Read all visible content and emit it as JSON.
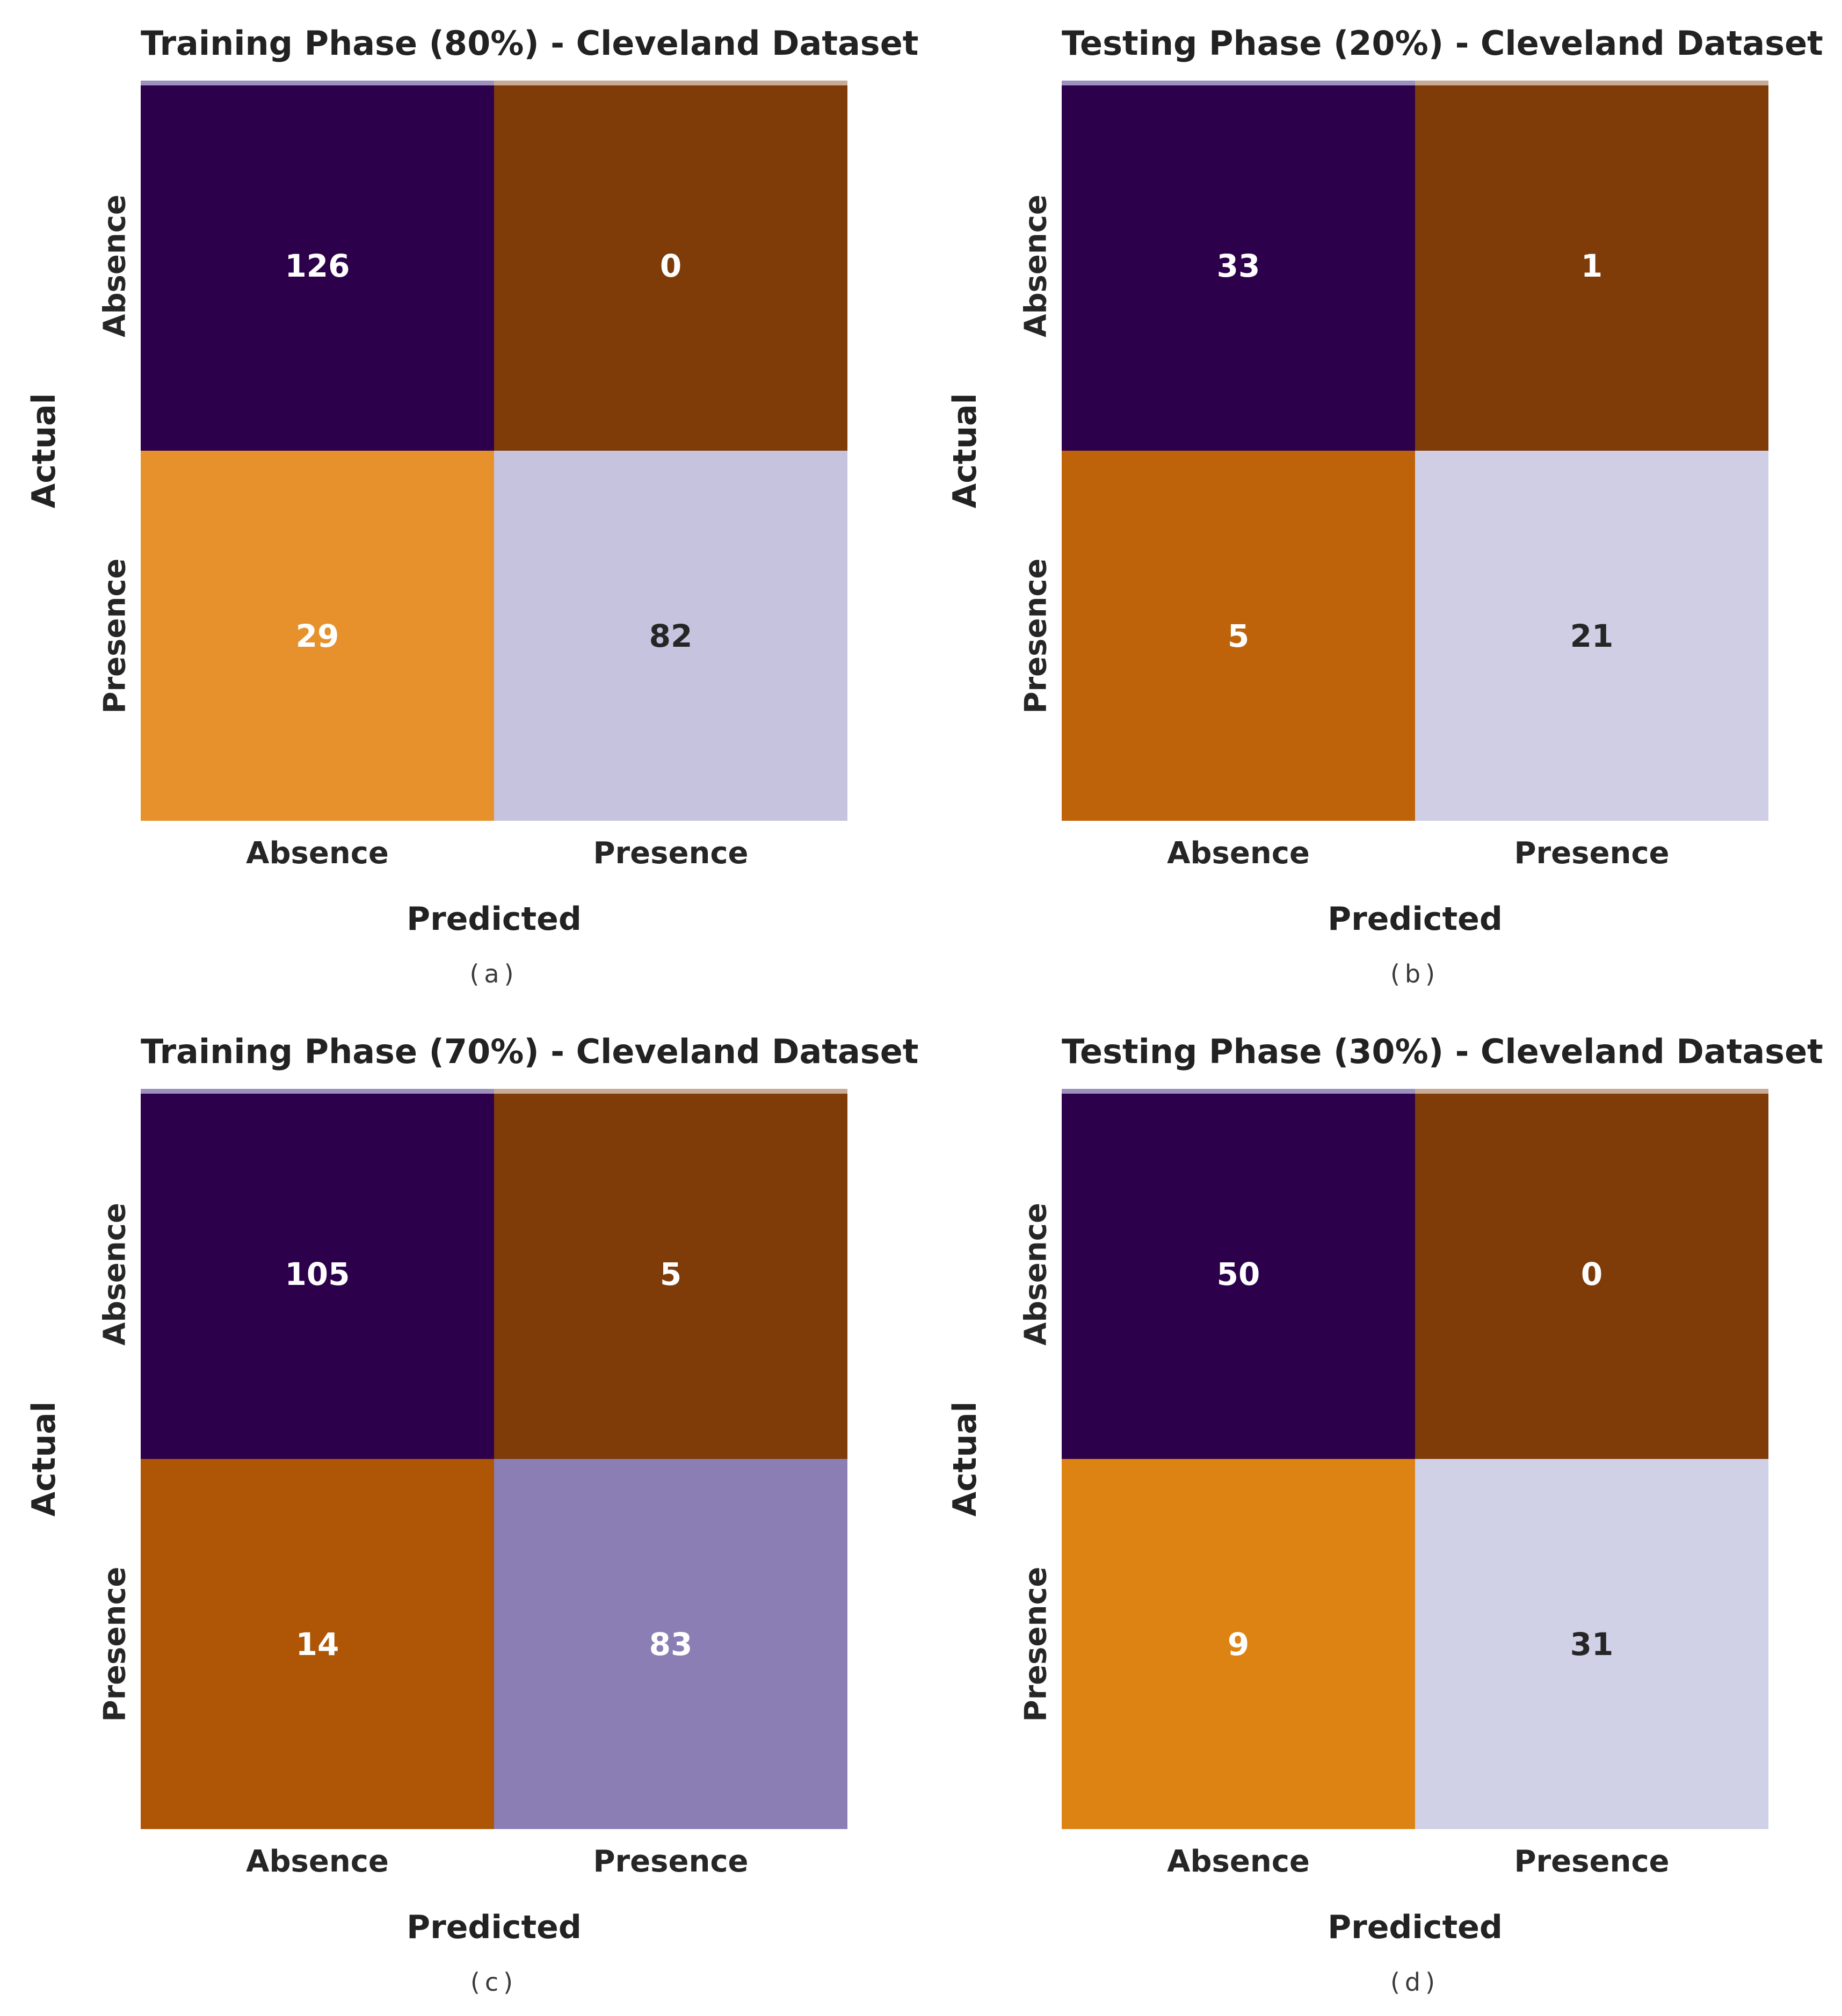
{
  "chart_data": [
    {
      "type": "heatmap",
      "panel": "a",
      "title": "Training Phase (80%) - Cleveland Dataset",
      "caption": "(a)",
      "xlabel": "Predicted",
      "ylabel": "Actual",
      "x_ticks": [
        "Absence",
        "Presence"
      ],
      "y_ticks": [
        "Absence",
        "Presence"
      ],
      "values": [
        [
          126,
          0
        ],
        [
          29,
          82
        ]
      ],
      "cell_colors": [
        [
          "#2d004b",
          "#7f3b08"
        ],
        [
          "#e6912c",
          "#c6c3de"
        ]
      ],
      "value_colors": [
        [
          "#ffffff",
          "#ffffff"
        ],
        [
          "#ffffff",
          "#262626"
        ]
      ]
    },
    {
      "type": "heatmap",
      "panel": "b",
      "title": "Testing Phase (20%) - Cleveland Dataset",
      "caption": "(b)",
      "xlabel": "Predicted",
      "ylabel": "Actual",
      "x_ticks": [
        "Absence",
        "Presence"
      ],
      "y_ticks": [
        "Absence",
        "Presence"
      ],
      "values": [
        [
          33,
          1
        ],
        [
          5,
          21
        ]
      ],
      "cell_colors": [
        [
          "#2d004b",
          "#7f3b08"
        ],
        [
          "#be630a",
          "#cfcee4"
        ]
      ],
      "value_colors": [
        [
          "#ffffff",
          "#ffffff"
        ],
        [
          "#ffffff",
          "#262626"
        ]
      ]
    },
    {
      "type": "heatmap",
      "panel": "c",
      "title": "Training Phase (70%) - Cleveland Dataset",
      "caption": "(c)",
      "xlabel": "Predicted",
      "ylabel": "Actual",
      "x_ticks": [
        "Absence",
        "Presence"
      ],
      "y_ticks": [
        "Absence",
        "Presence"
      ],
      "values": [
        [
          105,
          5
        ],
        [
          14,
          83
        ]
      ],
      "cell_colors": [
        [
          "#2d004b",
          "#7f3b08"
        ],
        [
          "#ae5506",
          "#8a7eb4"
        ]
      ],
      "value_colors": [
        [
          "#ffffff",
          "#ffffff"
        ],
        [
          "#ffffff",
          "#ffffff"
        ]
      ]
    },
    {
      "type": "heatmap",
      "panel": "d",
      "title": "Testing Phase (30%) - Cleveland Dataset",
      "caption": "(d)",
      "xlabel": "Predicted",
      "ylabel": "Actual",
      "x_ticks": [
        "Absence",
        "Presence"
      ],
      "y_ticks": [
        "Absence",
        "Presence"
      ],
      "values": [
        [
          50,
          0
        ],
        [
          9,
          31
        ]
      ],
      "cell_colors": [
        [
          "#2d004b",
          "#7f3b08"
        ],
        [
          "#dd8314",
          "#d0d0e6"
        ]
      ],
      "value_colors": [
        [
          "#ffffff",
          "#ffffff"
        ],
        [
          "#ffffff",
          "#262626"
        ]
      ]
    }
  ]
}
